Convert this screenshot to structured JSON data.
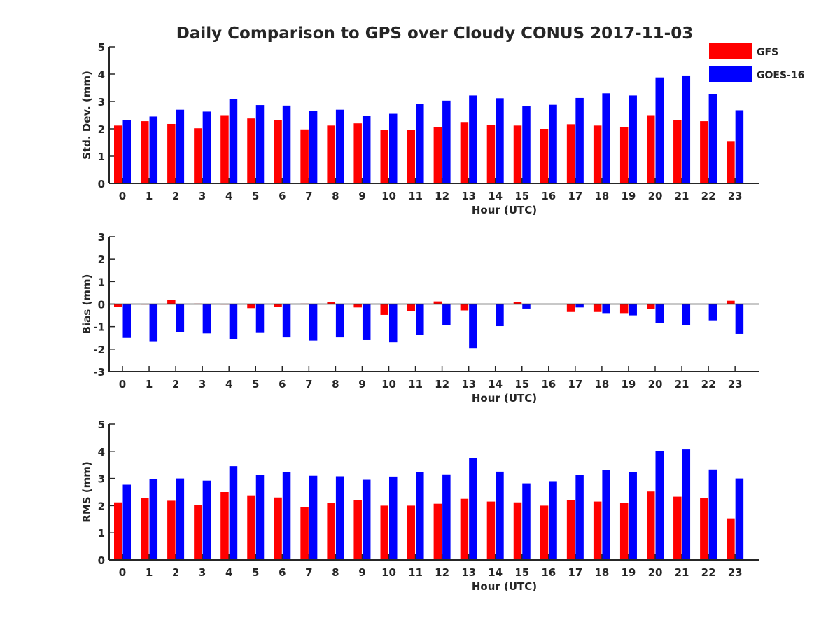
{
  "title": "Daily Comparison to GPS over Cloudy CONUS 2017-11-03",
  "colors": {
    "GFS": "#ff0000",
    "GOES-16": "#0000ff",
    "axis": "#262626"
  },
  "legend": {
    "position": "top-right",
    "entries": [
      "GFS",
      "GOES-16"
    ]
  },
  "chart_data": [
    {
      "type": "bar",
      "ylabel": "Std. Dev. (mm)",
      "xlabel": "Hour (UTC)",
      "ylim": [
        0,
        5
      ],
      "yticks": [
        0,
        1,
        2,
        3,
        4,
        5
      ],
      "categories": [
        "0",
        "1",
        "2",
        "3",
        "4",
        "5",
        "6",
        "7",
        "8",
        "9",
        "10",
        "11",
        "12",
        "13",
        "14",
        "15",
        "16",
        "17",
        "18",
        "19",
        "20",
        "21",
        "22",
        "23"
      ],
      "series": [
        {
          "name": "GFS",
          "values": [
            2.12,
            2.28,
            2.18,
            2.02,
            2.5,
            2.38,
            2.33,
            1.98,
            2.12,
            2.2,
            1.95,
            1.97,
            2.07,
            2.25,
            2.15,
            2.12,
            2.0,
            2.17,
            2.12,
            2.07,
            2.5,
            2.33,
            2.28,
            1.53
          ]
        },
        {
          "name": "GOES-16",
          "values": [
            2.33,
            2.45,
            2.7,
            2.63,
            3.08,
            2.87,
            2.85,
            2.65,
            2.7,
            2.48,
            2.55,
            2.92,
            3.03,
            3.22,
            3.12,
            2.82,
            2.88,
            3.13,
            3.3,
            3.22,
            3.88,
            3.95,
            3.27,
            2.68
          ]
        }
      ]
    },
    {
      "type": "bar",
      "ylabel": "Bias (mm)",
      "xlabel": "Hour (UTC)",
      "ylim": [
        -3,
        3
      ],
      "yticks": [
        -3,
        -2,
        -1,
        0,
        1,
        2,
        3
      ],
      "categories": [
        "0",
        "1",
        "2",
        "3",
        "4",
        "5",
        "6",
        "7",
        "8",
        "9",
        "10",
        "11",
        "12",
        "13",
        "14",
        "15",
        "16",
        "17",
        "18",
        "19",
        "20",
        "21",
        "22",
        "23"
      ],
      "series": [
        {
          "name": "GFS",
          "values": [
            -0.12,
            -0.02,
            0.2,
            0.02,
            -0.02,
            -0.18,
            -0.12,
            0.02,
            0.1,
            -0.15,
            -0.48,
            -0.32,
            0.12,
            -0.28,
            0.0,
            0.08,
            0.0,
            -0.35,
            -0.35,
            -0.4,
            -0.22,
            0.0,
            0.0,
            0.15
          ]
        },
        {
          "name": "GOES-16",
          "values": [
            -1.5,
            -1.65,
            -1.25,
            -1.3,
            -1.55,
            -1.28,
            -1.48,
            -1.62,
            -1.48,
            -1.6,
            -1.7,
            -1.38,
            -0.92,
            -1.95,
            -0.98,
            -0.2,
            0.0,
            -0.15,
            -0.4,
            -0.5,
            -0.85,
            -0.92,
            -0.72,
            -1.32
          ]
        }
      ]
    },
    {
      "type": "bar",
      "ylabel": "RMS (mm)",
      "xlabel": "Hour (UTC)",
      "ylim": [
        0,
        5
      ],
      "yticks": [
        0,
        1,
        2,
        3,
        4,
        5
      ],
      "categories": [
        "0",
        "1",
        "2",
        "3",
        "4",
        "5",
        "6",
        "7",
        "8",
        "9",
        "10",
        "11",
        "12",
        "13",
        "14",
        "15",
        "16",
        "17",
        "18",
        "19",
        "20",
        "21",
        "22",
        "23"
      ],
      "series": [
        {
          "name": "GFS",
          "values": [
            2.12,
            2.28,
            2.18,
            2.02,
            2.5,
            2.38,
            2.3,
            1.95,
            2.1,
            2.2,
            2.0,
            2.0,
            2.07,
            2.25,
            2.15,
            2.12,
            2.0,
            2.2,
            2.15,
            2.1,
            2.52,
            2.33,
            2.28,
            1.53
          ]
        },
        {
          "name": "GOES-16",
          "values": [
            2.77,
            2.98,
            3.0,
            2.92,
            3.45,
            3.13,
            3.23,
            3.1,
            3.08,
            2.95,
            3.07,
            3.23,
            3.15,
            3.75,
            3.25,
            2.82,
            2.9,
            3.13,
            3.32,
            3.23,
            4.0,
            4.07,
            3.33,
            3.0
          ]
        }
      ]
    }
  ]
}
